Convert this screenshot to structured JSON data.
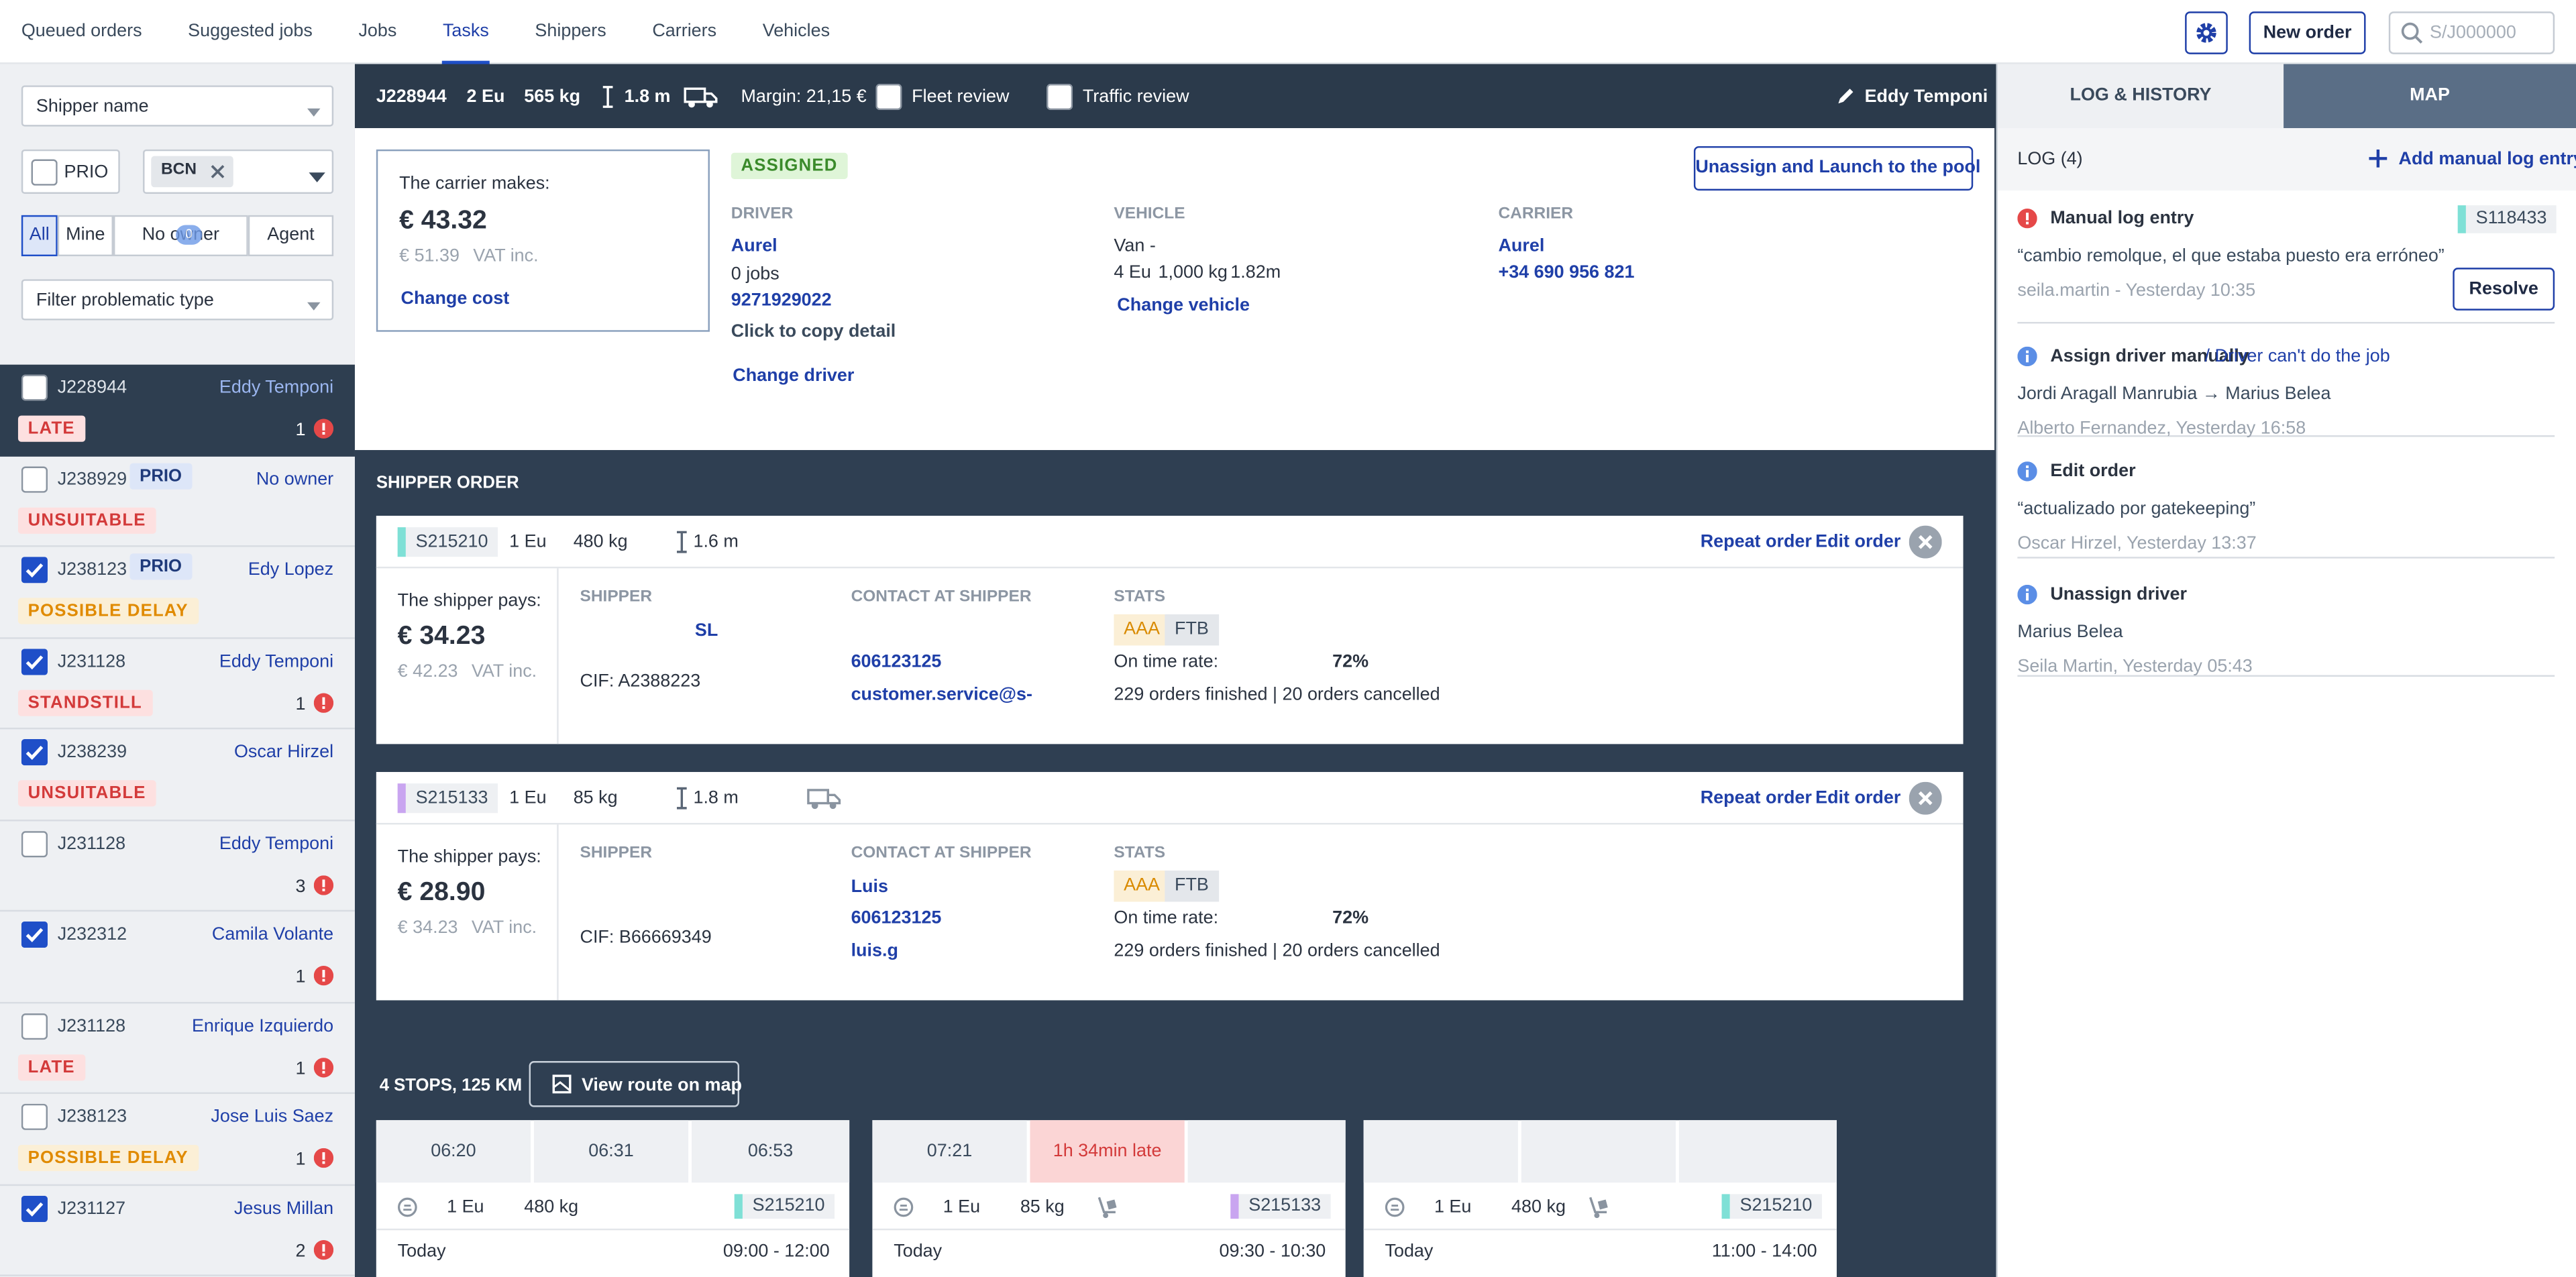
{
  "nav": {
    "tabs": [
      "Queued orders",
      "Suggested jobs",
      "Jobs",
      "Tasks",
      "Shippers",
      "Carriers",
      "Vehicles"
    ],
    "active_tab": 3,
    "new_order": "New order",
    "search_placeholder": "S/J000000"
  },
  "sidebar": {
    "shipper_name": "Shipper name",
    "prio": "PRIO",
    "location": "BCN",
    "owner_filters": [
      "All",
      "Mine",
      "No owner",
      "Agent"
    ],
    "active_owner_filter": 0,
    "owner_badge": "0",
    "problem_filter": "Filter problematic type",
    "selected_task": 0,
    "tasks": [
      {
        "id": "J228944",
        "owner": "Eddy Temponi",
        "status": "LATE",
        "count": "1",
        "checked": false
      },
      {
        "id": "J238929",
        "prio": "PRIO",
        "owner": "No owner",
        "status": "UNSUITABLE",
        "checked": false
      },
      {
        "id": "J238123",
        "prio": "PRIO",
        "owner": "Edy Lopez",
        "status": "POSSIBLE DELAY",
        "checked": true
      },
      {
        "id": "J231128",
        "owner": "Eddy Temponi",
        "status": "STANDSTILL",
        "count": "1",
        "checked": true
      },
      {
        "id": "J238239",
        "owner": "Oscar Hirzel",
        "status": "UNSUITABLE",
        "checked": true
      },
      {
        "id": "J231128",
        "owner": "Eddy Temponi",
        "count": "3",
        "checked": false
      },
      {
        "id": "J232312",
        "owner": "Camila Volante",
        "count": "1",
        "checked": true
      },
      {
        "id": "J231128",
        "owner": "Enrique Izquierdo",
        "status": "LATE",
        "count": "1",
        "checked": false
      },
      {
        "id": "J238123",
        "owner": "Jose Luis Saez",
        "status": "POSSIBLE DELAY",
        "count": "1",
        "checked": false
      },
      {
        "id": "J231127",
        "owner": "Jesus Millan",
        "count": "2",
        "checked": true
      }
    ]
  },
  "job": {
    "id": "J228944",
    "pallets": "2 Eu",
    "weight": "565 kg",
    "height": "1.8 m",
    "margin": "Margin: 21,15 €",
    "fleet_review": "Fleet review",
    "traffic_review": "Traffic review",
    "owner": "Eddy Temponi",
    "carrier_box": {
      "label": "The carrier makes:",
      "price": "€ 43.32",
      "vat_price": "€ 51.39",
      "vat": "VAT inc.",
      "action": "Change cost"
    },
    "status": "ASSIGNED",
    "unassign": "Unassign and Launch to the pool",
    "driver": {
      "label": "DRIVER",
      "name": "Aurel",
      "jobs": "0 jobs",
      "phone": "9271929022",
      "copy": "Click to copy detail",
      "action": "Change driver"
    },
    "vehicle": {
      "label": "VEHICLE",
      "type": "Van -",
      "pallets": "4 Eu",
      "weight": "1,000 kg",
      "height": "1.82m",
      "action": "Change vehicle"
    },
    "carrier": {
      "label": "CARRIER",
      "name": "Aurel",
      "phone": "+34 690 956 821"
    }
  },
  "shipper_orders": {
    "title": "SHIPPER ORDER",
    "repeat": "Repeat order",
    "edit": "Edit order",
    "pays_label": "The shipper pays:",
    "vat": "VAT inc.",
    "shipper_label": "SHIPPER",
    "contact_label": "CONTACT AT SHIPPER",
    "stats_label": "STATS",
    "on_time_label": "On time rate:",
    "orders": [
      {
        "id": "S215210",
        "color": "#7fe0d6",
        "pallets": "1 Eu",
        "weight": "480 kg",
        "height": "1.6 m",
        "price": "€ 34.23",
        "vat_price": "€ 42.23",
        "shipper": "SL",
        "cif": "CIF: A2388223",
        "phone": "606123125",
        "email": "customer.service@s-",
        "tags": [
          "AAA",
          "FTB"
        ],
        "on_time": "72%",
        "summary": "229 orders finished | 20 orders cancelled"
      },
      {
        "id": "S215133",
        "color": "#c9a5f0",
        "pallets": "1 Eu",
        "weight": "85 kg",
        "height": "1.8 m",
        "truck": true,
        "price": "€ 28.90",
        "vat_price": "€ 34.23",
        "cif": "CIF: B66669349",
        "contact": "Luis",
        "phone": "606123125",
        "email": "luis.g",
        "tags": [
          "AAA",
          "FTB"
        ],
        "on_time": "72%",
        "summary": "229 orders finished | 20 orders cancelled"
      }
    ]
  },
  "route": {
    "summary": "4 STOPS, 125 KM",
    "view_map": "View route on map",
    "today": "Today",
    "stops": [
      {
        "times": [
          "06:20",
          "06:31",
          "06:53"
        ],
        "pallets": "1 Eu",
        "weight": "480 kg",
        "order": "S215210",
        "color": "#7fe0d6",
        "window": "09:00 - 12:00"
      },
      {
        "times": [
          "07:21"
        ],
        "late": "1h 34min late",
        "pallets": "1 Eu",
        "weight": "85 kg",
        "trolley": true,
        "order": "S215133",
        "color": "#c9a5f0",
        "window": "09:30 - 10:30"
      },
      {
        "times": [],
        "pallets": "1 Eu",
        "weight": "480 kg",
        "trolley": true,
        "order": "S215210",
        "color": "#7fe0d6",
        "window": "11:00 - 14:00"
      }
    ]
  },
  "log": {
    "tabs": [
      "LOG & HISTORY",
      "MAP"
    ],
    "active_tab": 0,
    "title": "LOG (4)",
    "add": "Add manual log entry",
    "entries": [
      {
        "kind": "alert",
        "title": "Manual log entry",
        "tag": "S118433",
        "tag_color": "#7fe0d6",
        "text": "“cambio remolque, el que estaba puesto era erróneo”",
        "meta": "seila.martin - Yesterday 10:35",
        "action": "Resolve"
      },
      {
        "kind": "info",
        "title": "Assign driver manually",
        "reason": "/ Driver can't do the job",
        "text": "Jordi Aragall Manrubia → Marius Belea",
        "meta": "Alberto Fernandez, Yesterday 16:58"
      },
      {
        "kind": "info",
        "title": "Edit order",
        "text": "“actualizado por gatekeeping”",
        "meta": "Oscar Hirzel, Yesterday 13:37"
      },
      {
        "kind": "info",
        "title": "Unassign driver",
        "text": "Marius Belea",
        "meta": "Seila Martin, Yesterday 05:43"
      }
    ]
  }
}
